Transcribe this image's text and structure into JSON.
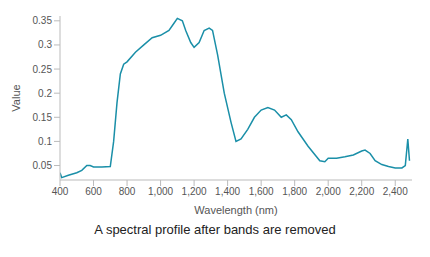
{
  "chart_data": {
    "type": "line",
    "caption": "A spectral profile after bands are removed",
    "x_label": "Wavelength (nm)",
    "y_label": "Value",
    "x": [
      400,
      410,
      450,
      500,
      530,
      560,
      580,
      600,
      650,
      700,
      720,
      740,
      760,
      780,
      800,
      850,
      900,
      950,
      1000,
      1050,
      1080,
      1100,
      1130,
      1150,
      1180,
      1200,
      1230,
      1260,
      1290,
      1310,
      1340,
      1380,
      1420,
      1450,
      1480,
      1520,
      1560,
      1600,
      1640,
      1680,
      1720,
      1750,
      1780,
      1820,
      1880,
      1950,
      1980,
      2000,
      2050,
      2100,
      2150,
      2200,
      2220,
      2250,
      2280,
      2320,
      2360,
      2400,
      2440,
      2460,
      2475,
      2485
    ],
    "values": [
      0.035,
      0.025,
      0.03,
      0.035,
      0.04,
      0.05,
      0.05,
      0.047,
      0.047,
      0.048,
      0.1,
      0.18,
      0.24,
      0.26,
      0.265,
      0.285,
      0.3,
      0.315,
      0.32,
      0.33,
      0.345,
      0.355,
      0.35,
      0.33,
      0.305,
      0.295,
      0.305,
      0.33,
      0.335,
      0.33,
      0.28,
      0.2,
      0.14,
      0.1,
      0.105,
      0.125,
      0.15,
      0.165,
      0.17,
      0.165,
      0.15,
      0.155,
      0.145,
      0.12,
      0.09,
      0.06,
      0.058,
      0.065,
      0.065,
      0.068,
      0.072,
      0.08,
      0.082,
      0.075,
      0.06,
      0.052,
      0.048,
      0.045,
      0.045,
      0.05,
      0.105,
      0.06
    ],
    "color": "#1a8fa8",
    "xlim": [
      400,
      2500
    ],
    "xticks": [
      400,
      600,
      800,
      {
        "value": 1000,
        "label": "1,000"
      },
      {
        "value": 1200,
        "label": "1,200"
      },
      {
        "value": 1400,
        "label": "1,400"
      },
      {
        "value": 1600,
        "label": "1,600"
      },
      {
        "value": 1800,
        "label": "1,800"
      },
      {
        "value": 2000,
        "label": "2,000"
      },
      {
        "value": 2200,
        "label": "2,200"
      },
      {
        "value": 2400,
        "label": "2,400"
      }
    ],
    "ylim": [
      0.02,
      0.36
    ],
    "yticks": [
      0.05,
      0.1,
      0.15,
      0.2,
      0.25,
      0.3,
      0.35
    ],
    "grid": false
  }
}
